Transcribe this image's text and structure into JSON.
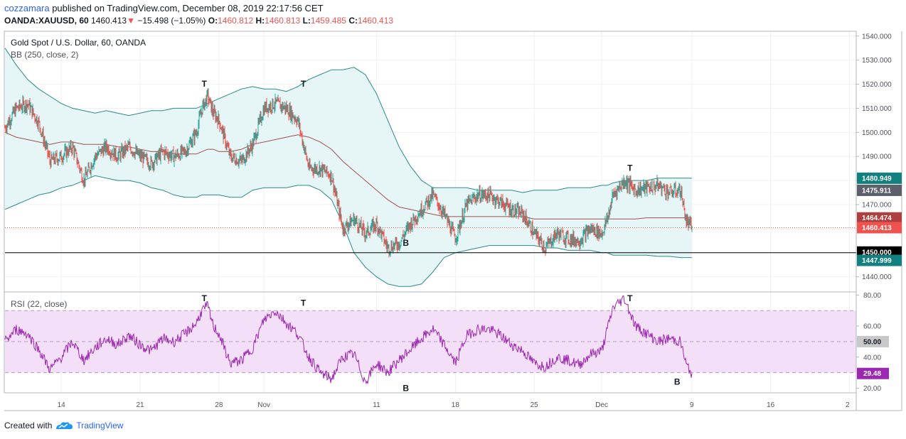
{
  "header": {
    "author": "cozzamara",
    "published": "published on TradingView.com, December 08, 2019 22:17:56 CET",
    "symbol": "OANDA:XAUUSD, 60",
    "last": "1460.413",
    "change_arrow": "▼",
    "change": "−15.498 (−1.05%)",
    "o_label": "O:",
    "o": "1460.812",
    "h_label": "H:",
    "h": "1460.813",
    "l_label": "L:",
    "l": "1459.485",
    "c_label": "C:",
    "c": "1460.413"
  },
  "legend": {
    "title": "Gold Spot / U.S. Dollar, 60, OANDA",
    "bb": "BB (250, close, 2)",
    "rsi": "RSI (22, close)"
  },
  "footer": {
    "created": "Created with",
    "brand": "TradingView",
    "logo_icon": "tradingview-cloud-icon"
  },
  "colors": {
    "up": "#26a69a",
    "down": "#ef5350",
    "bb_band": "#2b8a8a",
    "bb_fill": "#e6f5f5",
    "bb_basis": "#a05050",
    "rsi": "#9c27b0",
    "rsi_fill": "#f3e0f8",
    "last_line": "#ef5350"
  },
  "chart_data": [
    {
      "type": "candlestick",
      "title": "Gold Spot / U.S. Dollar, 60, OANDA",
      "ylim": [
        1434,
        1542
      ],
      "y_ticks": [
        "1440.000",
        "1450.000",
        "1460.000",
        "1470.000",
        "1480.000",
        "1490.000",
        "1500.000",
        "1510.000",
        "1520.000",
        "1530.000",
        "1540.000"
      ],
      "x_ticks": [
        "14",
        "21",
        "28",
        "Nov",
        "11",
        "18",
        "25",
        "Dec",
        "9",
        "16",
        "2"
      ],
      "x_tick_days": [
        14,
        21,
        28,
        32,
        42,
        49,
        56,
        62,
        70,
        77,
        84
      ],
      "x_range_days": [
        9,
        84.6
      ],
      "data_end_day": 70,
      "path_days": [
        9,
        10,
        11,
        12,
        13,
        14,
        15,
        16,
        17,
        18,
        19,
        20,
        21,
        22,
        23,
        24,
        25,
        26,
        26.5,
        27,
        27.5,
        28,
        29,
        30,
        31,
        32,
        33,
        34,
        35,
        36,
        37,
        38,
        39,
        40,
        41,
        42,
        43,
        44,
        45,
        46,
        47,
        48,
        49,
        50,
        51,
        52,
        53,
        54,
        55,
        56,
        57,
        58,
        59,
        60,
        61,
        62,
        62.5,
        63,
        64,
        65,
        66,
        67,
        68,
        69,
        69.5,
        70
      ],
      "path_close": [
        1502,
        1510,
        1512,
        1504,
        1488,
        1490,
        1494,
        1480,
        1490,
        1494,
        1490,
        1494,
        1490,
        1487,
        1492,
        1490,
        1492,
        1500,
        1510,
        1515,
        1508,
        1505,
        1490,
        1488,
        1495,
        1510,
        1512,
        1510,
        1505,
        1485,
        1485,
        1482,
        1460,
        1464,
        1458,
        1462,
        1452,
        1454,
        1462,
        1468,
        1474,
        1466,
        1456,
        1470,
        1474,
        1474,
        1471,
        1468,
        1466,
        1458,
        1452,
        1458,
        1456,
        1455,
        1460,
        1458,
        1464,
        1474,
        1480,
        1476,
        1477,
        1478,
        1475,
        1476,
        1463,
        1460.413
      ],
      "bb_upper": [
        1535,
        1528,
        1522,
        1518,
        1515,
        1512,
        1510,
        1509,
        1508,
        1509,
        1508,
        1507,
        1508,
        1509,
        1509,
        1510,
        1510,
        1510,
        1511,
        1512,
        1513,
        1514,
        1516,
        1518,
        1519,
        1518,
        1518,
        1517,
        1519,
        1522,
        1524,
        1526,
        1526,
        1527,
        1524,
        1516,
        1505,
        1494,
        1486,
        1480,
        1477,
        1477,
        1477,
        1477,
        1476,
        1476,
        1476,
        1476,
        1475,
        1476,
        1476,
        1476,
        1477,
        1477,
        1477,
        1478,
        1478,
        1479,
        1480,
        1480,
        1480,
        1481,
        1481,
        1481,
        1481,
        1480.949
      ],
      "bb_basis": [
        1500,
        1498,
        1497,
        1496,
        1495,
        1496,
        1496,
        1495,
        1495,
        1495,
        1494,
        1494,
        1493,
        1492,
        1492,
        1491,
        1491,
        1491,
        1492,
        1493,
        1493,
        1492,
        1492,
        1493,
        1495,
        1496,
        1497,
        1498,
        1499,
        1498,
        1496,
        1493,
        1488,
        1484,
        1480,
        1476,
        1472,
        1469,
        1468,
        1467,
        1466,
        1465,
        1465,
        1465,
        1465,
        1465,
        1465,
        1465,
        1465,
        1464,
        1464,
        1464,
        1464,
        1464,
        1464,
        1464,
        1464,
        1464,
        1464,
        1464,
        1464.5,
        1464.5,
        1464.5,
        1464.5,
        1464.5,
        1464.474
      ],
      "bb_lower": [
        1468,
        1470,
        1472,
        1474,
        1475,
        1477,
        1478,
        1480,
        1482,
        1481,
        1480,
        1480,
        1479,
        1477,
        1476,
        1474,
        1473,
        1473,
        1474,
        1474,
        1474,
        1474,
        1473,
        1473,
        1476,
        1477,
        1477,
        1477,
        1478,
        1478,
        1476,
        1472,
        1462,
        1450,
        1444,
        1440,
        1437,
        1436,
        1436,
        1437,
        1442,
        1448,
        1450,
        1451,
        1452,
        1453,
        1453,
        1453,
        1453,
        1453,
        1452,
        1452,
        1451,
        1451,
        1451,
        1450,
        1450,
        1449,
        1449,
        1449,
        1449,
        1448.5,
        1448.5,
        1448,
        1448,
        1447.999
      ],
      "price_labels": [
        "1480.949",
        "1475.911",
        "1464.474",
        "1460.413",
        "1450.000",
        "1447.999"
      ],
      "price_label_values": [
        1480.949,
        1475.911,
        1464.474,
        1460.413,
        1450.0,
        1447.999
      ],
      "horizontal_line": 1450.0,
      "annotations": [
        {
          "text": "T",
          "day": 26.7,
          "value": 1519
        },
        {
          "text": "T",
          "day": 35.5,
          "value": 1519
        },
        {
          "text": "B",
          "day": 44.6,
          "value": 1457
        },
        {
          "text": "T",
          "day": 64.5,
          "value": 1484
        },
        {
          "text": "B",
          "day": 0,
          "value": 0
        }
      ]
    },
    {
      "type": "line",
      "title": "RSI (22, close)",
      "ylim": [
        17,
        82
      ],
      "y_ticks": [
        "20.00",
        "40.00",
        "60.00",
        "80.00"
      ],
      "bands": [
        30,
        70
      ],
      "midline": 50,
      "path_days": [
        9,
        10,
        11,
        12,
        13,
        14,
        15,
        16,
        17,
        18,
        19,
        20,
        21,
        22,
        23,
        24,
        25,
        26,
        26.5,
        27,
        27.5,
        28,
        29,
        30,
        31,
        32,
        33,
        34,
        35,
        36,
        37,
        38,
        39,
        40,
        41,
        42,
        43,
        44,
        45,
        46,
        47,
        48,
        49,
        50,
        51,
        52,
        53,
        54,
        55,
        56,
        57,
        58,
        59,
        60,
        61,
        62,
        62.5,
        63,
        64,
        65,
        66,
        67,
        68,
        69,
        69.5,
        70
      ],
      "path_values": [
        50,
        58,
        55,
        45,
        32,
        40,
        50,
        38,
        46,
        52,
        48,
        54,
        48,
        44,
        52,
        50,
        55,
        62,
        70,
        73,
        60,
        55,
        36,
        38,
        46,
        64,
        70,
        62,
        55,
        40,
        30,
        26,
        40,
        42,
        24,
        36,
        30,
        38,
        45,
        52,
        58,
        48,
        36,
        54,
        58,
        58,
        54,
        48,
        44,
        36,
        34,
        40,
        38,
        35,
        42,
        44,
        58,
        72,
        78,
        60,
        55,
        50,
        52,
        50,
        35,
        29.48
      ],
      "last_label": "29.48",
      "mid_label": "50.00",
      "annotations": [
        {
          "text": "T",
          "day": 26.7,
          "value": 76
        },
        {
          "text": "T",
          "day": 35.5,
          "value": 73
        },
        {
          "text": "B",
          "day": 44.6,
          "value": 20
        },
        {
          "text": "T",
          "day": 64.5,
          "value": 76
        },
        {
          "text": "B",
          "day": 68.7,
          "value": 24
        }
      ]
    }
  ]
}
